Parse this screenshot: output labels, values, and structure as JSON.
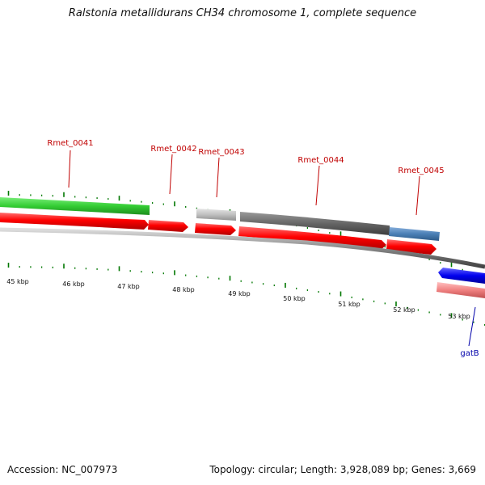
{
  "title": "Ralstonia metallidurans CH34 chromosome 1, complete sequence",
  "footer": {
    "accession": "Accession: NC_007973",
    "summary": "Topology: circular; Length: 3,928,089 bp; Genes: 3,669"
  },
  "gene_labels": [
    {
      "id": "rmet0041",
      "text": "Rmet_0041",
      "color": "#c00000"
    },
    {
      "id": "rmet0042",
      "text": "Rmet_0042",
      "color": "#c00000"
    },
    {
      "id": "rmet0043",
      "text": "Rmet_0043",
      "color": "#c00000"
    },
    {
      "id": "rmet0044",
      "text": "Rmet_0044",
      "color": "#c00000"
    },
    {
      "id": "rmet0045",
      "text": "Rmet_0045",
      "color": "#c00000"
    },
    {
      "id": "gatb",
      "text": "gatB",
      "color": "#0000aa"
    }
  ],
  "kbp_labels": [
    "45 kbp",
    "46 kbp",
    "47 kbp",
    "48 kbp",
    "49 kbp",
    "50 kbp",
    "51 kbp",
    "52 kbp",
    "53 kbp"
  ],
  "colors": {
    "cds": "#ff0000",
    "gene_green": "#33cc33",
    "gene_grey_light": "#c0c0c0",
    "gene_grey_dark": "#666666",
    "gene_steel_blue": "#4a7fb5",
    "gene_blue": "#0000ee",
    "gene_pink": "#f08080",
    "backbone": "#888888",
    "ticks": "#007700"
  }
}
